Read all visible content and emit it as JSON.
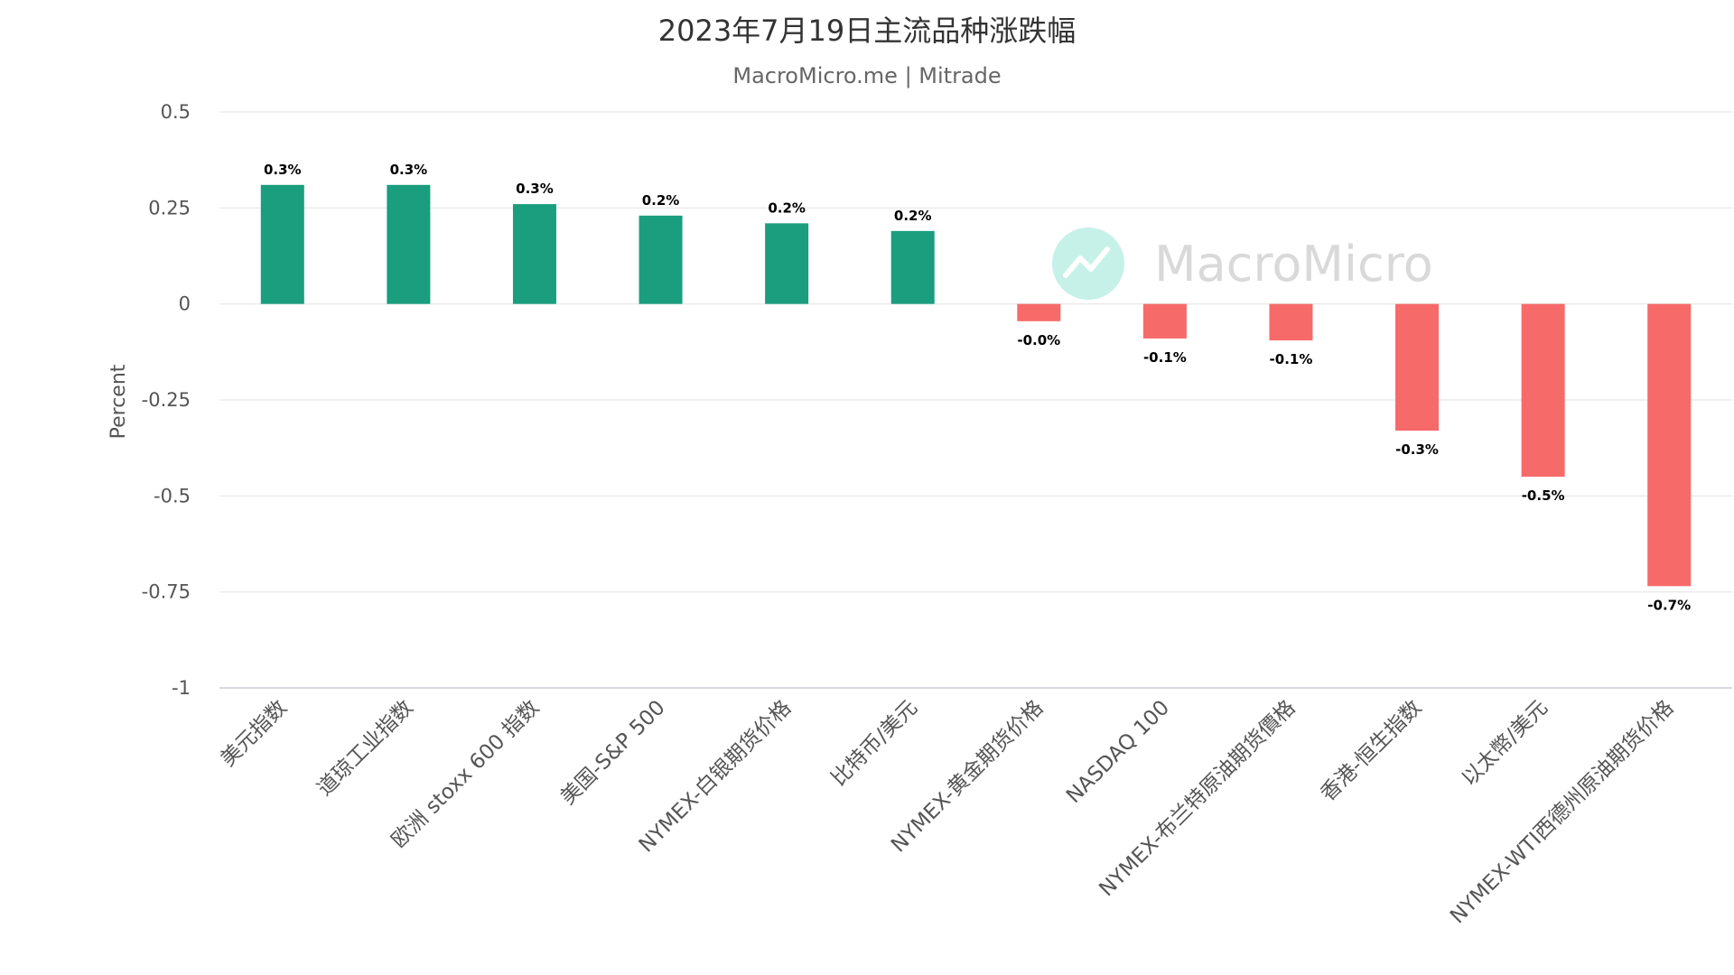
{
  "chart_data": {
    "type": "bar",
    "title": "2023年7月19日主流品种涨跌幅",
    "subtitle": "MacroMicro.me | Mitrade",
    "ylabel": "Percent",
    "ylim": [
      -1,
      0.5
    ],
    "yticks": [
      0.5,
      0.25,
      0,
      -0.25,
      -0.5,
      -0.75,
      -1
    ],
    "ytick_labels": [
      "0.5",
      "0.25",
      "0",
      "-0.25",
      "-0.5",
      "-0.75",
      "-1"
    ],
    "grid": true,
    "categories": [
      "美元指数",
      "道琼工业指数",
      "欧洲 stoxx 600 指数",
      "美国-S&P 500",
      "NYMEX-白银期货价格",
      "比特币/美元",
      "NYMEX-黄金期货价格",
      "NASDAQ 100",
      "NYMEX-布兰特原油期货價格",
      "香港-恒生指数",
      "以太幣/美元",
      "NYMEX-WTI西德州原油期货价格"
    ],
    "values": [
      0.31,
      0.31,
      0.26,
      0.23,
      0.21,
      0.19,
      -0.045,
      -0.09,
      -0.095,
      -0.33,
      -0.45,
      -0.735
    ],
    "data_labels": [
      "0.3%",
      "0.3%",
      "0.3%",
      "0.2%",
      "0.2%",
      "0.2%",
      "-0.0%",
      "-0.1%",
      "-0.1%",
      "-0.3%",
      "-0.5%",
      "-0.7%"
    ],
    "colors": {
      "positive": "#1a9e7e",
      "negative": "#f76a6a"
    }
  },
  "watermark": {
    "text": "MacroMicro",
    "color": "#d9d9d9",
    "logo_color": "#c6f1e8",
    "icon": "chart-line-icon"
  }
}
